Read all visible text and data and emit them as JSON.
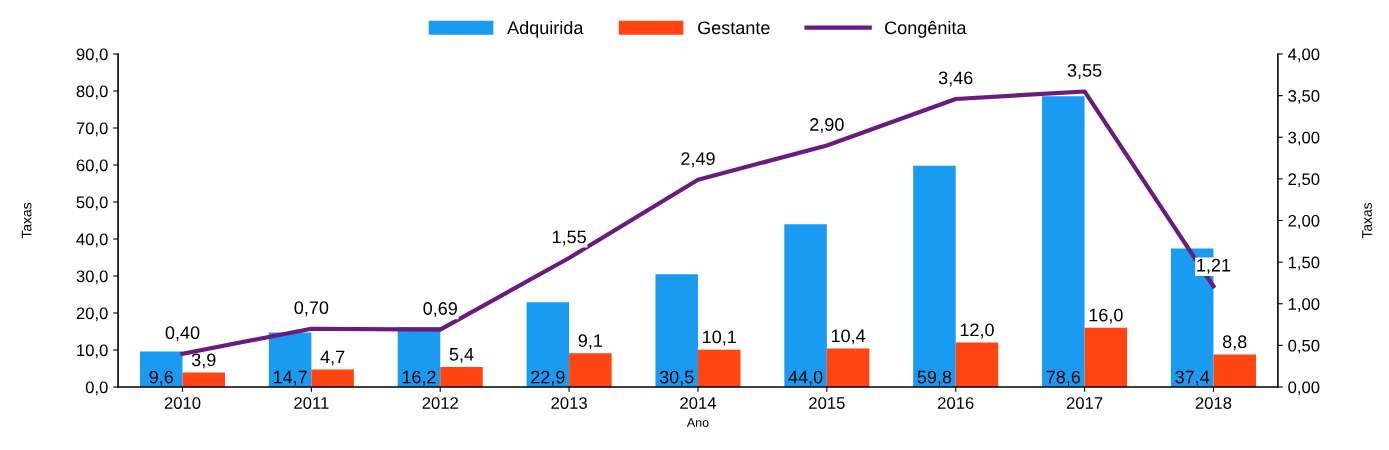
{
  "chart_data": {
    "type": "bar",
    "xlabel": "Ano",
    "ylabel": "Taxas",
    "y2label": "Taxas",
    "categories": [
      "2010",
      "2011",
      "2012",
      "2013",
      "2014",
      "2015",
      "2016",
      "2017",
      "2018"
    ],
    "series": [
      {
        "name": "Adquirida",
        "color": "#1a9af0",
        "values": [
          9.6,
          14.7,
          16.2,
          22.9,
          30.5,
          44.0,
          59.8,
          78.6,
          37.4
        ],
        "value_labels": [
          "9,6",
          "14,7",
          "16,2",
          "22,9",
          "30,5",
          "44,0",
          "59,8",
          "78,6",
          "37,4"
        ]
      },
      {
        "name": "Gestante",
        "color": "#ff4512",
        "values": [
          3.9,
          4.7,
          5.4,
          9.1,
          10.1,
          10.4,
          12.0,
          16.0,
          8.8
        ],
        "value_labels": [
          "3,9",
          "4,7",
          "5,4",
          "9,1",
          "10,1",
          "10,4",
          "12,0",
          "16,0",
          "8,8"
        ]
      },
      {
        "name": "Congênita",
        "type": "line",
        "axis": "y2",
        "color": "#6a1b7e",
        "values": [
          0.4,
          0.7,
          0.69,
          1.55,
          2.49,
          2.9,
          3.46,
          3.55,
          1.21
        ],
        "value_labels": [
          "0,40",
          "0,70",
          "0,69",
          "1,55",
          "2,49",
          "2,90",
          "3,46",
          "3,55",
          "1,21"
        ]
      }
    ],
    "ylim": [
      0,
      90
    ],
    "yticks": [
      {
        "value": 0,
        "label": "0,0"
      },
      {
        "value": 10,
        "label": "10,0"
      },
      {
        "value": 20,
        "label": "20,0"
      },
      {
        "value": 30,
        "label": "30,0"
      },
      {
        "value": 40,
        "label": "40,0"
      },
      {
        "value": 50,
        "label": "50,0"
      },
      {
        "value": 60,
        "label": "60,0"
      },
      {
        "value": 70,
        "label": "70,0"
      },
      {
        "value": 80,
        "label": "80,0"
      },
      {
        "value": 90,
        "label": "90,0"
      }
    ],
    "y2lim": [
      0,
      4
    ],
    "y2ticks": [
      {
        "value": 0,
        "label": "0,00"
      },
      {
        "value": 0.5,
        "label": "0,50"
      },
      {
        "value": 1,
        "label": "1,00"
      },
      {
        "value": 1.5,
        "label": "1,50"
      },
      {
        "value": 2,
        "label": "2,00"
      },
      {
        "value": 2.5,
        "label": "2,50"
      },
      {
        "value": 3,
        "label": "3,00"
      },
      {
        "value": 3.5,
        "label": "3,50"
      },
      {
        "value": 4,
        "label": "4,00"
      }
    ],
    "legend": "top",
    "grid": false,
    "marker": "none",
    "line_style": "solid"
  }
}
